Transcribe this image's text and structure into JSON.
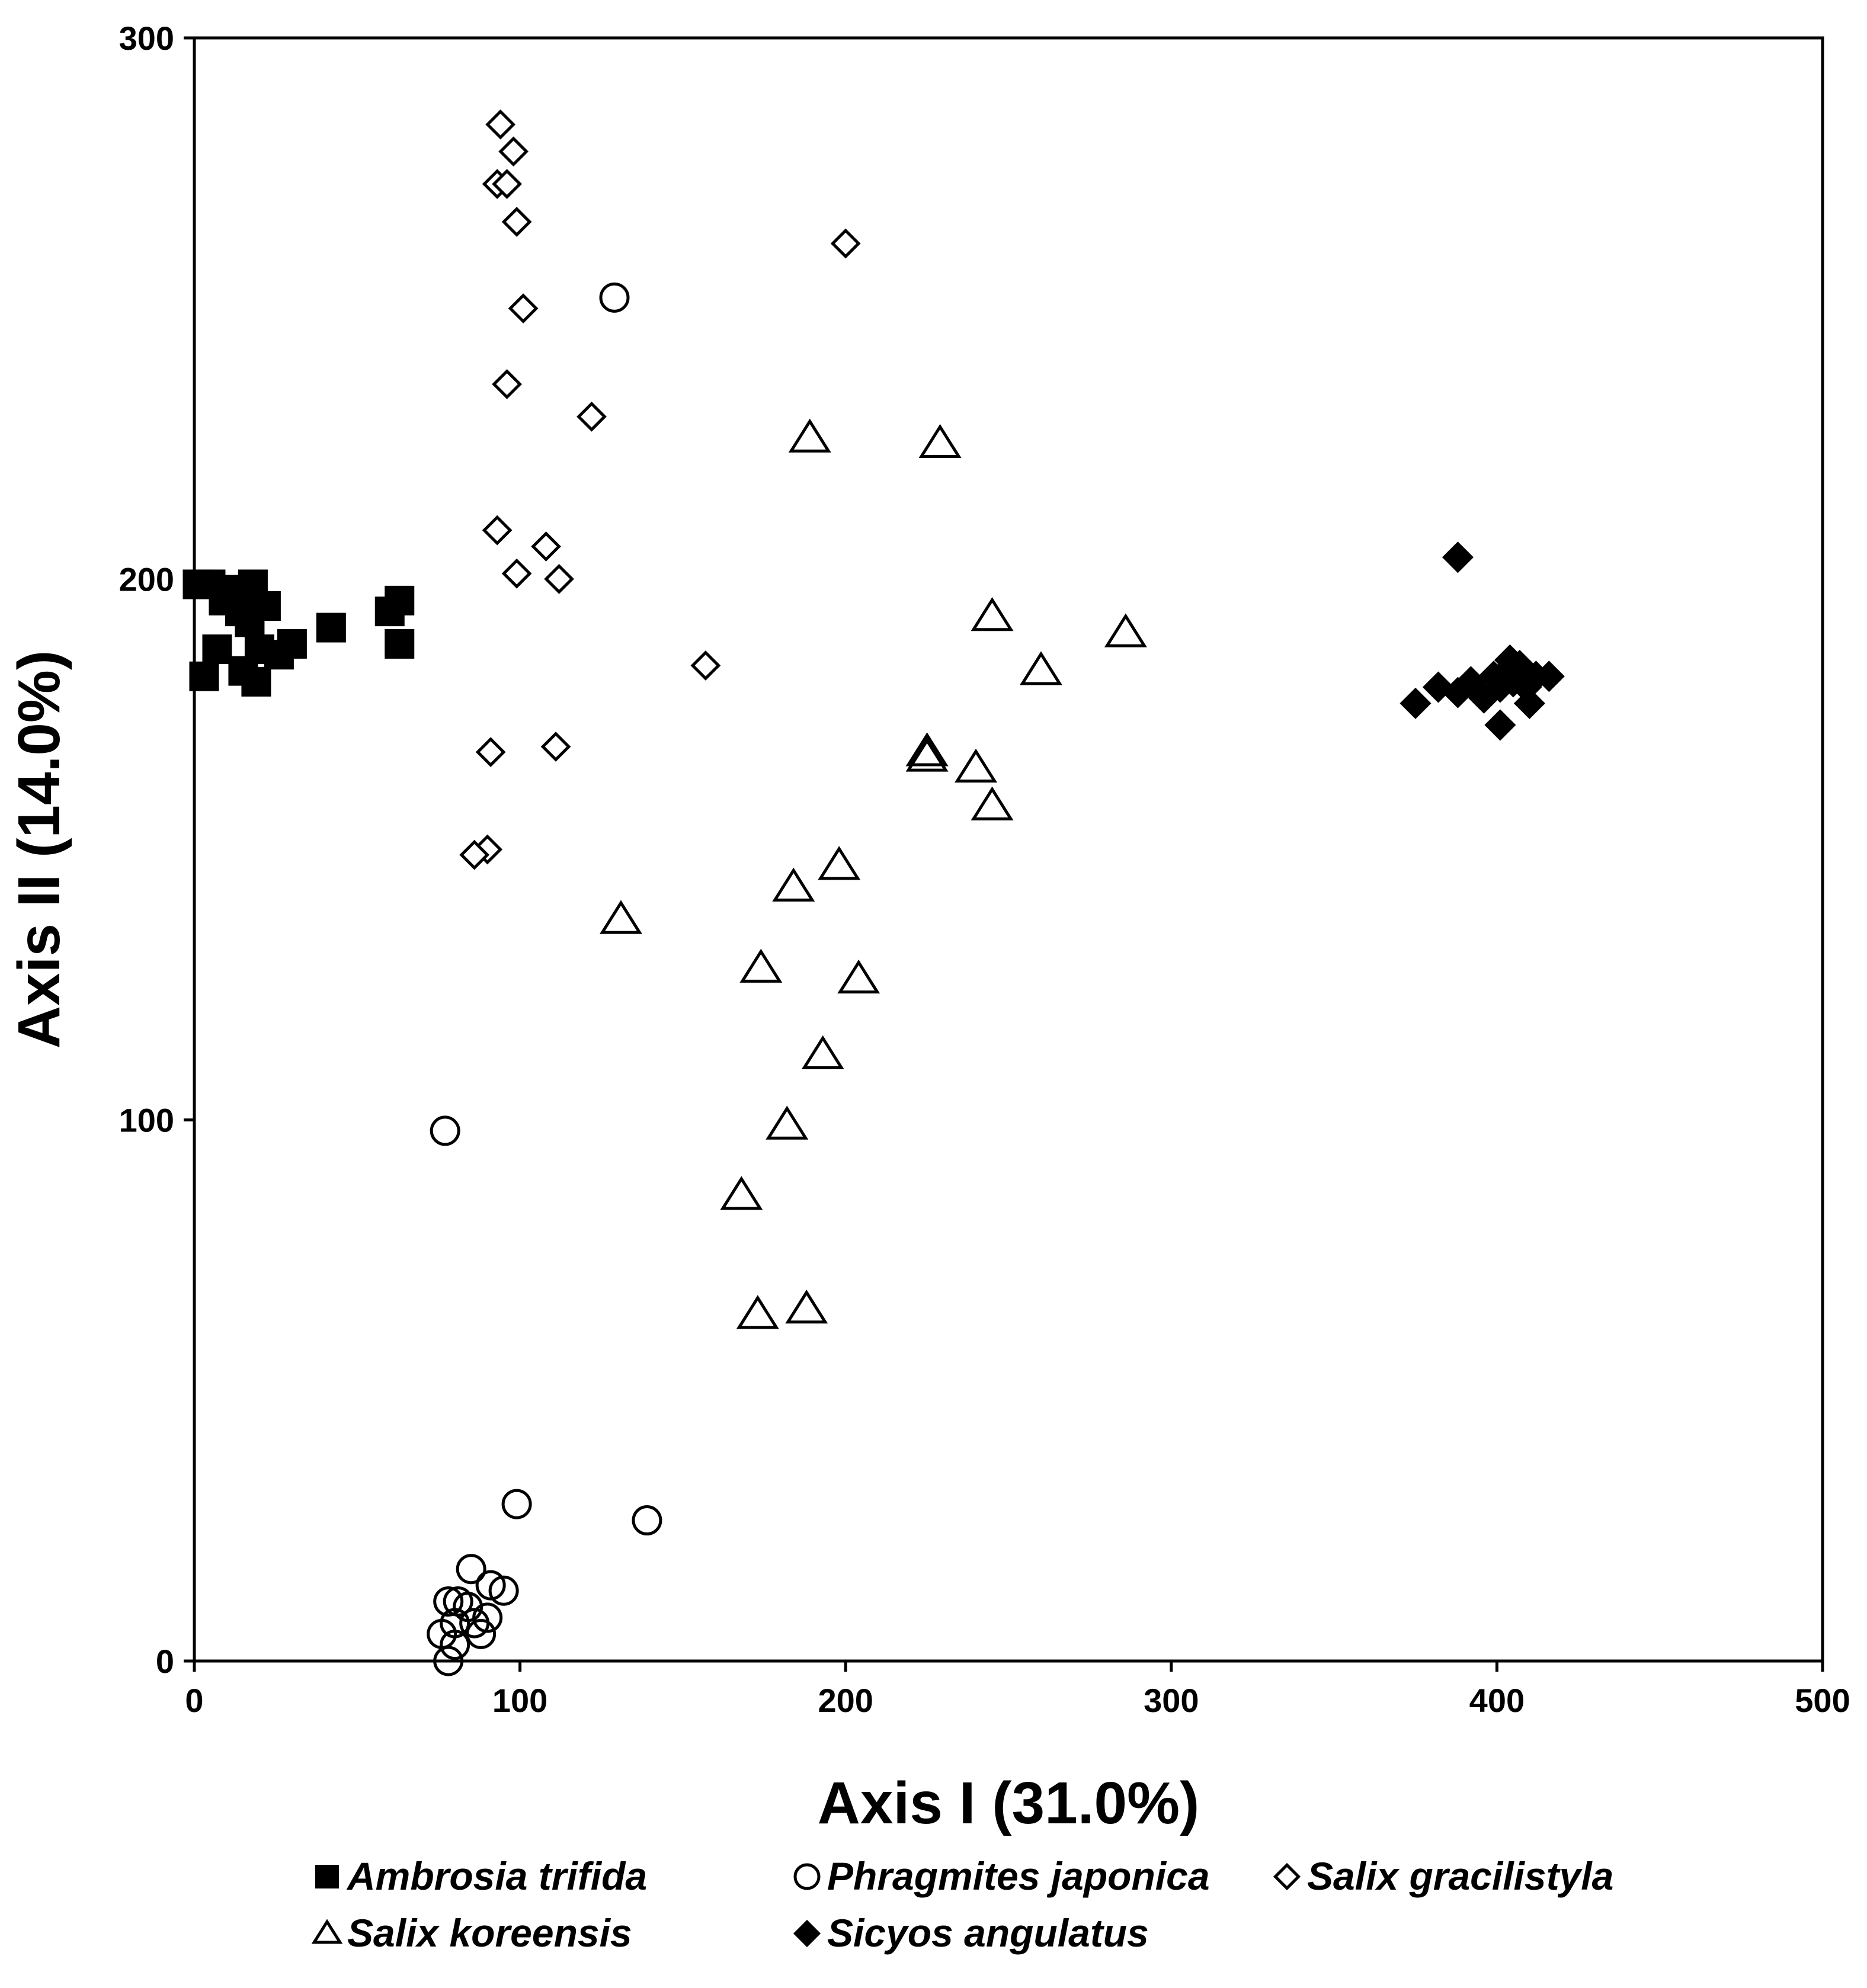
{
  "chart_data": {
    "type": "scatter",
    "title": "",
    "xlabel": "Axis I (31.0%)",
    "ylabel": "Axis II (14.0%)",
    "xlim": [
      0,
      500
    ],
    "ylim": [
      0,
      300
    ],
    "xticks": [
      0,
      100,
      200,
      300,
      400,
      500
    ],
    "yticks": [
      0,
      100,
      200,
      300
    ],
    "grid": false,
    "legend_position": "bottom",
    "series": [
      {
        "name": "Ambrosia trifida",
        "marker": "square-filled",
        "points": [
          [
            1,
            199
          ],
          [
            3,
            182
          ],
          [
            5,
            199
          ],
          [
            7,
            187
          ],
          [
            9,
            196
          ],
          [
            12,
            198
          ],
          [
            14,
            194
          ],
          [
            15,
            183
          ],
          [
            17,
            192
          ],
          [
            18,
            199
          ],
          [
            19,
            181
          ],
          [
            20,
            187
          ],
          [
            22,
            195
          ],
          [
            26,
            186
          ],
          [
            30,
            188
          ],
          [
            42,
            191
          ],
          [
            60,
            194
          ],
          [
            63,
            196
          ],
          [
            63,
            188
          ]
        ]
      },
      {
        "name": "Phragmites japonica",
        "marker": "circle-open",
        "points": [
          [
            129,
            252
          ],
          [
            77,
            98
          ],
          [
            99,
            29
          ],
          [
            139,
            26
          ],
          [
            85,
            17
          ],
          [
            95,
            13
          ],
          [
            91,
            14
          ],
          [
            78,
            11
          ],
          [
            81,
            11
          ],
          [
            84,
            10
          ],
          [
            80,
            7
          ],
          [
            90,
            8
          ],
          [
            86,
            7
          ],
          [
            76,
            5
          ],
          [
            88,
            5
          ],
          [
            80,
            3
          ],
          [
            78,
            0
          ]
        ]
      },
      {
        "name": "Salix gracilistyla",
        "marker": "diamond-open",
        "points": [
          [
            94,
            284
          ],
          [
            98,
            279
          ],
          [
            93,
            273
          ],
          [
            96,
            273
          ],
          [
            99,
            266
          ],
          [
            200,
            262
          ],
          [
            101,
            250
          ],
          [
            96,
            236
          ],
          [
            122,
            230
          ],
          [
            93,
            209
          ],
          [
            108,
            206
          ],
          [
            99,
            201
          ],
          [
            112,
            200
          ],
          [
            157,
            184
          ],
          [
            91,
            168
          ],
          [
            111,
            169
          ],
          [
            90,
            150
          ],
          [
            86,
            149
          ]
        ]
      },
      {
        "name": "Salix koreensis",
        "marker": "triangle-open",
        "points": [
          [
            189,
            226
          ],
          [
            229,
            225
          ],
          [
            245,
            193
          ],
          [
            286,
            190
          ],
          [
            260,
            183
          ],
          [
            225,
            168
          ],
          [
            225,
            167
          ],
          [
            240,
            165
          ],
          [
            245,
            158
          ],
          [
            198,
            147
          ],
          [
            184,
            143
          ],
          [
            131,
            137
          ],
          [
            174,
            128
          ],
          [
            204,
            126
          ],
          [
            193,
            112
          ],
          [
            182,
            99
          ],
          [
            168,
            86
          ],
          [
            173,
            64
          ],
          [
            188,
            65
          ]
        ]
      },
      {
        "name": "Sicyos angulatus",
        "marker": "diamond-filled",
        "points": [
          [
            388,
            204
          ],
          [
            375,
            177
          ],
          [
            382,
            180
          ],
          [
            388,
            179
          ],
          [
            392,
            181
          ],
          [
            396,
            178
          ],
          [
            399,
            182
          ],
          [
            401,
            180
          ],
          [
            403,
            183
          ],
          [
            404,
            185
          ],
          [
            405,
            181
          ],
          [
            407,
            184
          ],
          [
            409,
            180
          ],
          [
            410,
            177
          ],
          [
            412,
            182
          ],
          [
            416,
            182
          ],
          [
            401,
            173
          ]
        ]
      }
    ]
  }
}
